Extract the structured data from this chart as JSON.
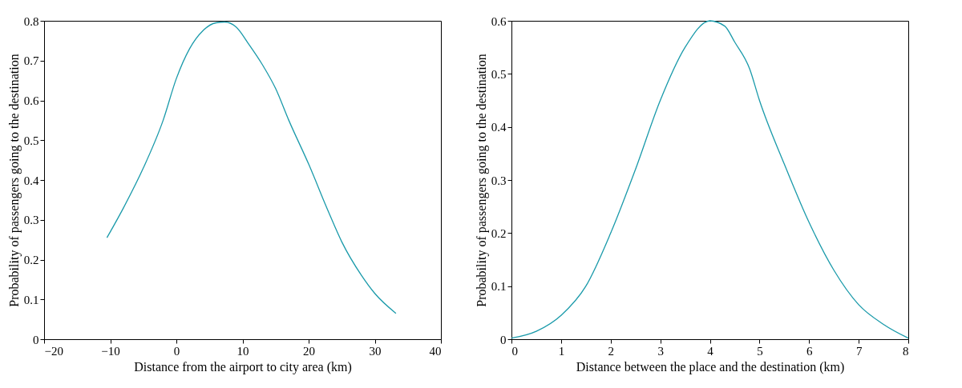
{
  "chart_data": [
    {
      "type": "line",
      "xlabel": "Distance from the airport to city area (km)",
      "ylabel": "Probability of passengers going to the destination",
      "xlim": [
        -20,
        40
      ],
      "xticks": [
        -20,
        -10,
        0,
        10,
        20,
        30,
        40
      ],
      "ylim": [
        0,
        0.8
      ],
      "yticks": [
        0,
        0.1,
        0.2,
        0.3,
        0.4,
        0.5,
        0.6,
        0.7,
        0.8
      ],
      "grid": false,
      "marker": "none",
      "line_style": "solid",
      "x": [
        -10.5,
        -8,
        -5,
        -2,
        0,
        2,
        4,
        6,
        7.3,
        9,
        11,
        13,
        15,
        17,
        20,
        23,
        25,
        28,
        30,
        33.2
      ],
      "series": [
        {
          "color": "#1a9aaa",
          "values": [
            0.255,
            0.33,
            0.43,
            0.55,
            0.655,
            0.73,
            0.775,
            0.795,
            0.797,
            0.785,
            0.74,
            0.69,
            0.63,
            0.55,
            0.44,
            0.32,
            0.245,
            0.16,
            0.115,
            0.065
          ]
        }
      ]
    },
    {
      "type": "line",
      "xlabel": "Distance between the place and the destination (km)",
      "ylabel": "Probability of passengers going to the destination",
      "xlim": [
        0,
        8
      ],
      "xticks": [
        0,
        1,
        2,
        3,
        4,
        5,
        6,
        7,
        8
      ],
      "ylim": [
        0,
        0.6
      ],
      "yticks": [
        0,
        0.1,
        0.2,
        0.3,
        0.4,
        0.5,
        0.6
      ],
      "grid": false,
      "marker": "none",
      "line_style": "solid",
      "x": [
        0,
        0.5,
        1,
        1.5,
        2,
        2.5,
        3,
        3.5,
        4,
        4.3,
        4.5,
        4.8,
        5,
        5.5,
        6,
        6.5,
        7,
        7.5,
        8
      ],
      "series": [
        {
          "color": "#1a9aaa",
          "values": [
            0.002,
            0.015,
            0.045,
            0.1,
            0.2,
            0.32,
            0.45,
            0.55,
            0.6,
            0.59,
            0.56,
            0.51,
            0.45,
            0.33,
            0.22,
            0.13,
            0.065,
            0.028,
            0.002
          ]
        }
      ]
    }
  ]
}
